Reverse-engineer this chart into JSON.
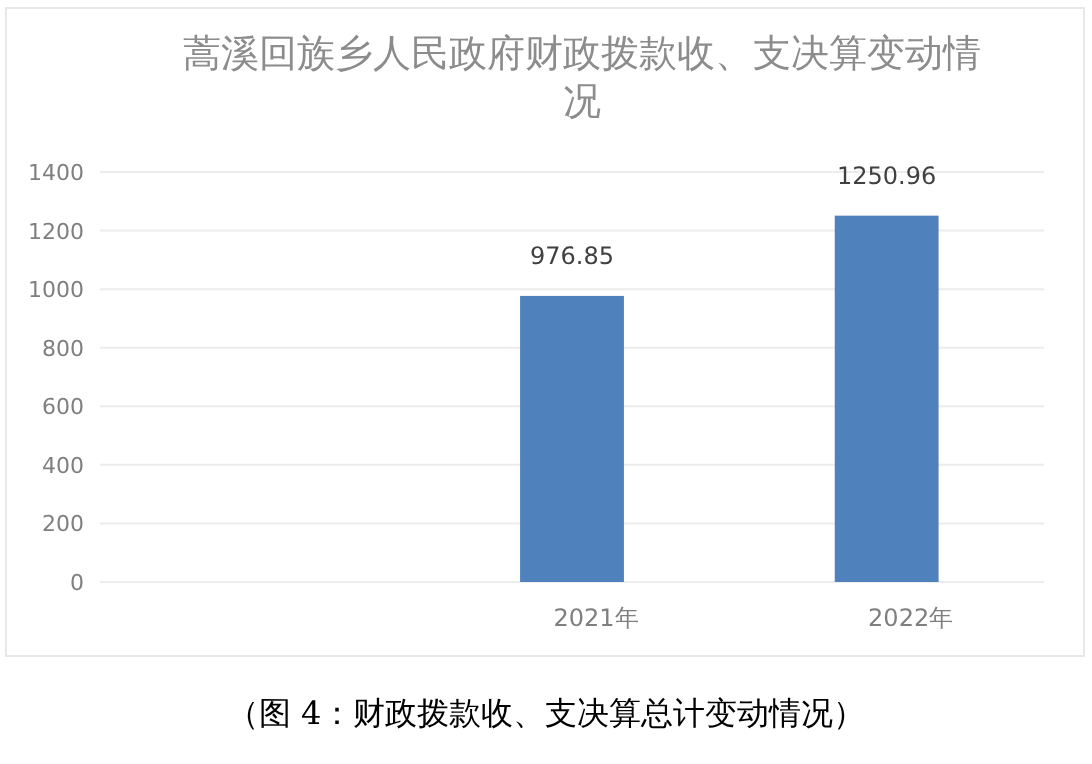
{
  "chart_data": {
    "type": "bar",
    "title": "蒿溪回族乡人民政府财政拨款收、支决算变动情况",
    "categories": [
      null,
      "2021年",
      "2022年"
    ],
    "values": [
      null,
      976.85,
      1250.96
    ],
    "color": "#4f81bd",
    "ylim": [
      0,
      1400
    ],
    "yticks": [
      0,
      200,
      400,
      600,
      800,
      1000,
      1200,
      1400
    ],
    "grid": "y",
    "data_labels": true,
    "annotations": [
      "（图 4：财政拨款收、支决算总计变动情况）"
    ]
  }
}
